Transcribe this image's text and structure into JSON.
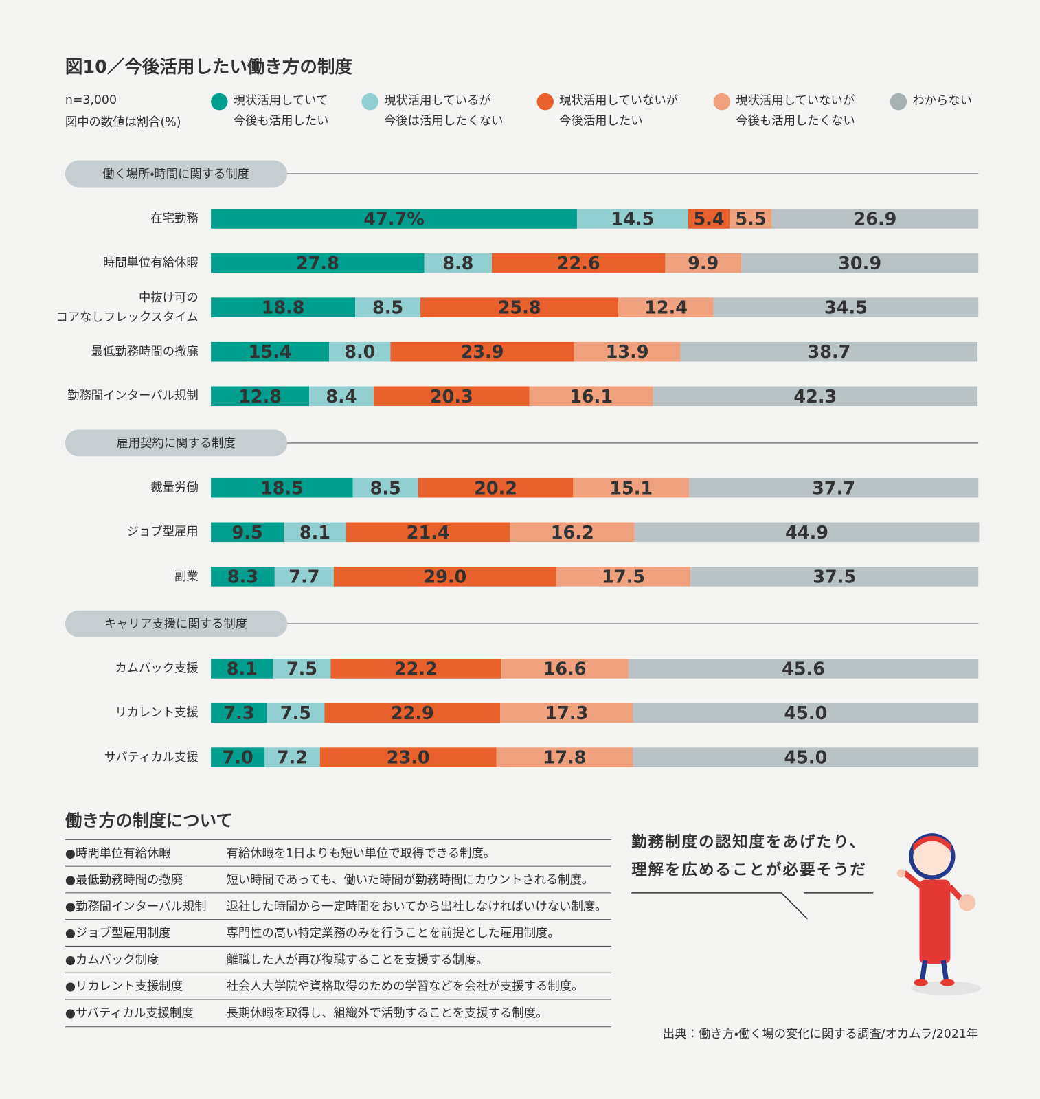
{
  "title": "図10／今後活用したい働き方の制度",
  "notes": [
    "n=3,000",
    "図中の数値は割合(%)"
  ],
  "legend": [
    {
      "name": "現状活用していて\n今後も活用したい",
      "color": "#009e8e"
    },
    {
      "name": "現状活用しているが\n今後は活用したくない",
      "color": "#92cfd0"
    },
    {
      "name": "現状活用していないが\n今後活用したい",
      "color": "#e8612c"
    },
    {
      "name": "現状活用していないが\n今後も活用したくない",
      "color": "#efa07c"
    },
    {
      "name": "わからない",
      "color": "#b9c2c5"
    }
  ],
  "chart_data": [
    {
      "type": "bar",
      "orientation": "horizontal",
      "stacked": true,
      "title": "働く場所・時間に関する制度",
      "xlim": [
        0,
        100
      ],
      "categories": [
        "在宅勤務",
        "時間単位有給休暇",
        "中抜け可の\nコアなしフレックスタイム",
        "最低勤務時間の撤廃",
        "勤務間インターバル規制"
      ],
      "series": [
        {
          "values": [
            47.7,
            27.8,
            18.8,
            15.4,
            12.8
          ],
          "value_labels": [
            "47.7%",
            "27.8",
            "18.8",
            "15.4",
            "12.8"
          ]
        },
        {
          "values": [
            14.5,
            8.8,
            8.5,
            8,
            8.4
          ],
          "value_labels": [
            "14.5",
            "8.8",
            "8.5",
            "8.0",
            "8.4"
          ]
        },
        {
          "values": [
            5.4,
            22.6,
            25.8,
            23.9,
            20.3
          ],
          "value_labels": [
            "5.4",
            "22.6",
            "25.8",
            "23.9",
            "20.3"
          ]
        },
        {
          "values": [
            5.5,
            9.9,
            12.4,
            13.9,
            16.1
          ],
          "value_labels": [
            "5.5",
            "9.9",
            "12.4",
            "13.9",
            "16.1"
          ]
        },
        {
          "values": [
            26.9,
            30.9,
            34.5,
            38.7,
            42.3
          ],
          "value_labels": [
            "26.9",
            "30.9",
            "34.5",
            "38.7",
            "42.3"
          ]
        }
      ]
    },
    {
      "type": "bar",
      "orientation": "horizontal",
      "stacked": true,
      "title": "雇用契約に関する制度",
      "xlim": [
        0,
        100
      ],
      "categories": [
        "裁量労働",
        "ジョブ型雇用",
        "副業"
      ],
      "series": [
        {
          "values": [
            18.5,
            9.5,
            8.3
          ],
          "value_labels": [
            "18.5",
            "9.5",
            "8.3"
          ]
        },
        {
          "values": [
            8.5,
            8.1,
            7.7
          ],
          "value_labels": [
            "8.5",
            "8.1",
            "7.7"
          ]
        },
        {
          "values": [
            20.2,
            21.4,
            29
          ],
          "value_labels": [
            "20.2",
            "21.4",
            "29.0"
          ]
        },
        {
          "values": [
            15.1,
            16.2,
            17.5
          ],
          "value_labels": [
            "15.1",
            "16.2",
            "17.5"
          ]
        },
        {
          "values": [
            37.7,
            44.9,
            37.5
          ],
          "value_labels": [
            "37.7",
            "44.9",
            "37.5"
          ]
        }
      ]
    },
    {
      "type": "bar",
      "orientation": "horizontal",
      "stacked": true,
      "title": "キャリア支援に関する制度",
      "xlim": [
        0,
        100
      ],
      "categories": [
        "カムバック支援",
        "リカレント支援",
        "サバティカル支援"
      ],
      "series": [
        {
          "values": [
            8.1,
            7.3,
            7
          ],
          "value_labels": [
            "8.1",
            "7.3",
            "7.0"
          ]
        },
        {
          "values": [
            7.5,
            7.5,
            7.2
          ],
          "value_labels": [
            "7.5",
            "7.5",
            "7.2"
          ]
        },
        {
          "values": [
            22.2,
            22.9,
            23
          ],
          "value_labels": [
            "22.2",
            "22.9",
            "23.0"
          ]
        },
        {
          "values": [
            16.6,
            17.3,
            17.8
          ],
          "value_labels": [
            "16.6",
            "17.3",
            "17.8"
          ]
        },
        {
          "values": [
            45.6,
            45,
            45
          ],
          "value_labels": [
            "45.6",
            "45.0",
            "45.0"
          ]
        }
      ]
    }
  ],
  "glossary": {
    "title": "働き方の制度について",
    "rows": [
      [
        "●時間単位有給休暇",
        "有給休暇を1日よりも短い単位で取得できる制度。"
      ],
      [
        "●最低勤務時間の撤廃",
        "短い時間であっても、働いた時間が勤務時間にカウントされる制度。"
      ],
      [
        "●勤務間インターバル規制",
        "退社した時間から一定時間をおいてから出社しなければいけない制度。"
      ],
      [
        "●ジョブ型雇用制度",
        "専門性の高い特定業務のみを行うことを前提とした雇用制度。"
      ],
      [
        "●カムバック制度",
        "離職した人が再び復職することを支援する制度。"
      ],
      [
        "●リカレント支援制度",
        "社会人大学院や資格取得のための学習などを会社が支援する制度。"
      ],
      [
        "●サバティカル支援制度",
        "長期休暇を取得し、組織外で活動することを支援する制度。"
      ]
    ]
  },
  "speech": [
    "勤務制度の認知度をあげたり、",
    "理解を広めることが必要そうだ"
  ],
  "source": "出典：働き方・働く場の変化に関する調査/オカムラ/2021年"
}
